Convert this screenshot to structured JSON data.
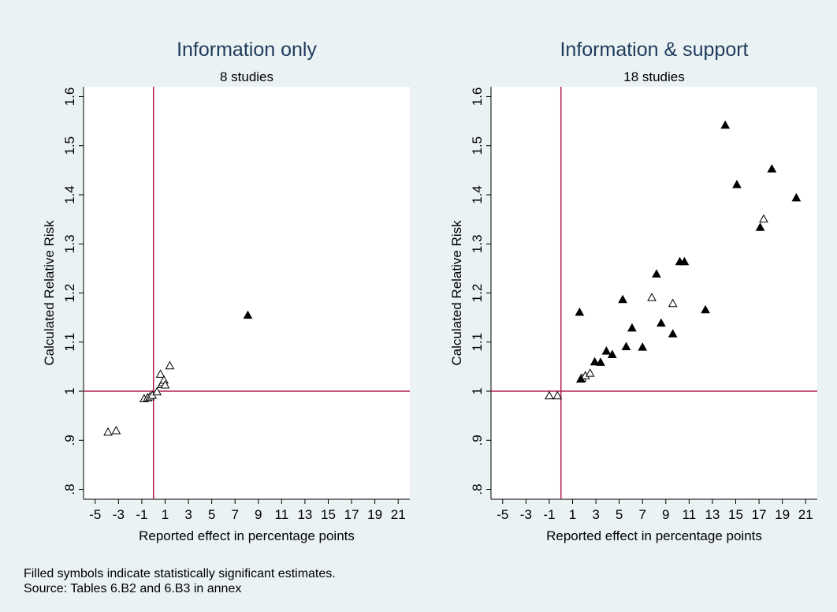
{
  "chart_data": [
    {
      "type": "scatter",
      "title": "Information only",
      "subtitle": "8 studies",
      "xlabel": "Reported effect in percentage points",
      "ylabel": "Calculated Relative Risk",
      "xlim": [
        -6,
        22
      ],
      "ylim": [
        0.78,
        1.62
      ],
      "xticks": [
        -5,
        -3,
        -1,
        1,
        3,
        5,
        7,
        9,
        11,
        13,
        15,
        17,
        19,
        21
      ],
      "xtick_labels": [
        "-5",
        "-3",
        "-1",
        "1",
        "3",
        "5",
        "7",
        "9",
        "11",
        "13",
        "15",
        "17",
        "19",
        "21"
      ],
      "yticks": [
        0.8,
        0.9,
        1.0,
        1.1,
        1.2,
        1.3,
        1.4,
        1.5,
        1.6
      ],
      "ytick_labels": [
        ".8",
        ".9",
        "1",
        "1.1",
        "1.2",
        "1.3",
        "1.4",
        "1.5",
        "1.6"
      ],
      "reference_lines": {
        "x": 0,
        "y": 1.0,
        "color": "#b0204b"
      },
      "grid": false,
      "series": [
        {
          "marker": "hollow-triangle",
          "points": [
            [
              -3.9,
              0.916
            ],
            [
              -3.2,
              0.919
            ],
            [
              -0.8,
              0.984
            ],
            [
              -0.5,
              0.986
            ],
            [
              -0.3,
              0.988
            ],
            [
              -0.1,
              0.991
            ],
            [
              0.3,
              0.998
            ],
            [
              0.6,
              1.034
            ],
            [
              0.7,
              1.013
            ],
            [
              0.8,
              1.017
            ],
            [
              0.9,
              1.022
            ],
            [
              1.0,
              1.012
            ],
            [
              1.4,
              1.051
            ]
          ]
        },
        {
          "marker": "filled-triangle",
          "points": [
            [
              8.1,
              1.154
            ]
          ]
        }
      ]
    },
    {
      "type": "scatter",
      "title": "Information & support",
      "subtitle": "18 studies",
      "xlabel": "Reported effect in percentage points",
      "ylabel": "Calculated Relative Risk",
      "xlim": [
        -6,
        22
      ],
      "ylim": [
        0.78,
        1.62
      ],
      "xticks": [
        -5,
        -3,
        -1,
        1,
        3,
        5,
        7,
        9,
        11,
        13,
        15,
        17,
        19,
        21
      ],
      "xtick_labels": [
        "-5",
        "-3",
        "-1",
        "1",
        "3",
        "5",
        "7",
        "9",
        "11",
        "13",
        "15",
        "17",
        "19",
        "21"
      ],
      "yticks": [
        0.8,
        0.9,
        1.0,
        1.1,
        1.2,
        1.3,
        1.4,
        1.5,
        1.6
      ],
      "ytick_labels": [
        ".8",
        ".9",
        "1",
        "1.1",
        "1.2",
        "1.3",
        "1.4",
        "1.5",
        "1.6"
      ],
      "reference_lines": {
        "x": 0,
        "y": 1.0,
        "color": "#b0204b"
      },
      "grid": false,
      "series": [
        {
          "marker": "hollow-triangle",
          "points": [
            [
              -1.0,
              0.99
            ],
            [
              -0.3,
              0.99
            ],
            [
              1.8,
              1.026
            ],
            [
              2.1,
              1.031
            ],
            [
              2.5,
              1.036
            ],
            [
              7.8,
              1.19
            ],
            [
              9.6,
              1.178
            ],
            [
              17.4,
              1.35
            ]
          ]
        },
        {
          "marker": "filled-triangle",
          "points": [
            [
              1.6,
              1.16
            ],
            [
              1.7,
              1.024
            ],
            [
              2.9,
              1.059
            ],
            [
              3.4,
              1.058
            ],
            [
              3.9,
              1.081
            ],
            [
              4.4,
              1.074
            ],
            [
              5.3,
              1.186
            ],
            [
              5.6,
              1.09
            ],
            [
              6.1,
              1.128
            ],
            [
              7.0,
              1.089
            ],
            [
              8.2,
              1.238
            ],
            [
              8.6,
              1.138
            ],
            [
              9.6,
              1.116
            ],
            [
              10.2,
              1.263
            ],
            [
              10.6,
              1.263
            ],
            [
              12.4,
              1.165
            ],
            [
              14.1,
              1.541
            ],
            [
              15.1,
              1.42
            ],
            [
              17.1,
              1.333
            ],
            [
              18.1,
              1.452
            ],
            [
              20.2,
              1.393
            ]
          ]
        }
      ]
    }
  ],
  "notes": {
    "line1": "Filled symbols indicate statistically significant estimates.",
    "line2": "Source: Tables 6.B2 and 6.B3 in annex"
  }
}
